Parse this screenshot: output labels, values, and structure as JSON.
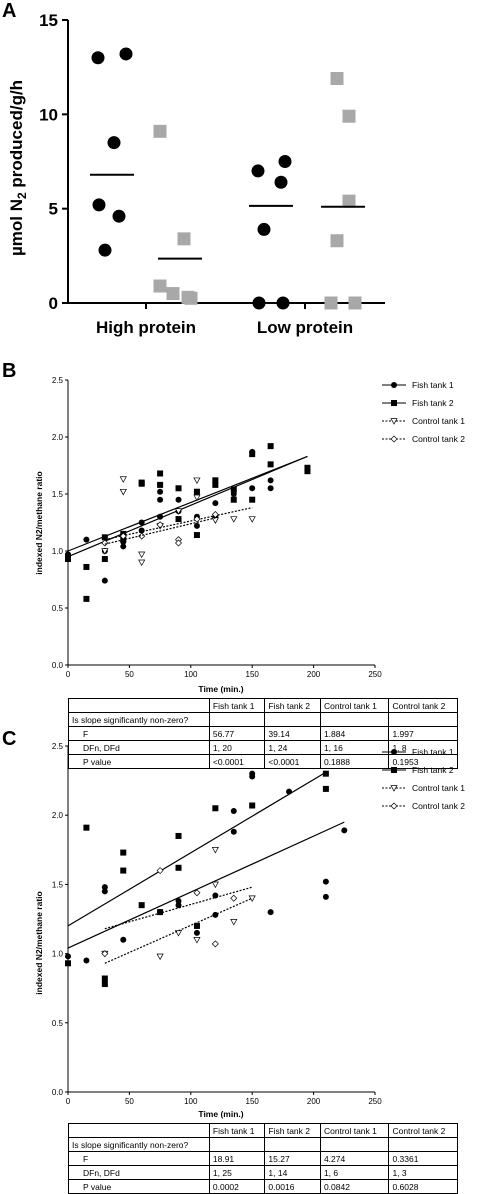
{
  "panel_a": {
    "letter": "A",
    "ylabel_pre": "µmol N",
    "ylabel_sub": "2",
    "ylabel_post": " produced/g/h",
    "yticks": [
      "0",
      "5",
      "10",
      "15"
    ]
  },
  "panel_b": {
    "letter": "B",
    "xlabel": "Time (min.)",
    "ylabel": "indexed N2/methane ratio",
    "xticks": [
      "0",
      "50",
      "100",
      "150",
      "200",
      "250"
    ],
    "yticks": [
      "0.0",
      "0.5",
      "1.0",
      "1.5",
      "2.0",
      "2.5"
    ],
    "legend": [
      "Fish tank 1",
      "Fish tank 2",
      "Control tank 1",
      "Control tank 2"
    ],
    "table": {
      "header": [
        "",
        "Fish tank 1",
        "Fish tank 2",
        "Control tank 1",
        "Control tank 2"
      ],
      "section": "Is slope significantly non-zero?",
      "rows": [
        [
          "F",
          "56.77",
          "39.14",
          "1.884",
          "1.997"
        ],
        [
          "DFn, DFd",
          "1, 20",
          "1, 24",
          "1, 16",
          "1, 8"
        ],
        [
          "P value",
          "<0.0001",
          "<0.0001",
          "0.1888",
          "0.1953"
        ]
      ]
    }
  },
  "panel_c": {
    "letter": "C",
    "xlabel": "Time (min.)",
    "ylabel": "indexed N2/methane ratio",
    "xticks": [
      "0",
      "50",
      "100",
      "150",
      "200",
      "250"
    ],
    "yticks": [
      "0.0",
      "0.5",
      "1.0",
      "1.5",
      "2.0",
      "2.5"
    ],
    "legend": [
      "Fish tank 1",
      "Fish tank 2",
      "Control tank 1",
      "Control tank 2"
    ],
    "table": {
      "header": [
        "",
        "Fish tank 1",
        "Fish tank 2",
        "Control tank 1",
        "Control tank 2"
      ],
      "section": "Is slope significantly non-zero?",
      "rows": [
        [
          "F",
          "18.91",
          "15.27",
          "4.274",
          "0.3361"
        ],
        [
          "DFn, DFd",
          "1, 25",
          "1, 14",
          "1, 6",
          "1, 3"
        ],
        [
          "P value",
          "0.0002",
          "0.0016",
          "0.0842",
          "0.6028"
        ]
      ]
    }
  },
  "chart_data": [
    {
      "type": "scatter",
      "panel": "A",
      "categories": [
        "High protein",
        "Low protein"
      ],
      "ylim": [
        0,
        15
      ],
      "colors": {
        "dark": "#000000",
        "light": "#a8a8a8"
      },
      "series": [
        {
          "group": "High protein",
          "marker": "circle",
          "color": "#000000",
          "values": [
            13.0,
            13.2,
            8.5,
            5.2,
            4.6,
            2.8
          ],
          "mean": 6.8
        },
        {
          "group": "High protein",
          "marker": "square",
          "color": "#a8a8a8",
          "values": [
            9.1,
            3.4,
            0.9,
            0.5,
            0.3,
            0.25
          ],
          "mean": 2.35
        },
        {
          "group": "Low protein",
          "marker": "circle",
          "color": "#000000",
          "values": [
            7.0,
            7.5,
            6.4,
            3.9,
            0.0,
            0.0
          ],
          "mean": 5.15
        },
        {
          "group": "Low protein",
          "marker": "square",
          "color": "#a8a8a8",
          "values": [
            11.9,
            9.9,
            5.4,
            3.3,
            0.0,
            0.0
          ],
          "mean": 5.1
        }
      ]
    },
    {
      "type": "scatter",
      "panel": "B",
      "xlabel": "Time (min.)",
      "ylabel": "indexed N2/methane ratio",
      "xlim": [
        0,
        250
      ],
      "ylim": [
        0,
        2.5
      ],
      "legend_position": "top-right",
      "series": [
        {
          "name": "Fish tank 1",
          "marker": "circle",
          "points": [
            [
              0,
              0.97
            ],
            [
              15,
              1.1
            ],
            [
              30,
              0.74
            ],
            [
              30,
              1.0
            ],
            [
              45,
              1.04
            ],
            [
              45,
              1.08
            ],
            [
              60,
              1.18
            ],
            [
              60,
              1.25
            ],
            [
              75,
              1.3
            ],
            [
              75,
              1.45
            ],
            [
              75,
              1.52
            ],
            [
              90,
              1.35
            ],
            [
              90,
              1.45
            ],
            [
              105,
              1.22
            ],
            [
              105,
              1.3
            ],
            [
              120,
              1.3
            ],
            [
              120,
              1.42
            ],
            [
              135,
              1.5
            ],
            [
              150,
              1.55
            ],
            [
              150,
              1.87
            ],
            [
              165,
              1.55
            ],
            [
              165,
              1.62
            ]
          ],
          "fit": [
            [
              0,
              1.0
            ],
            [
              195,
              1.83
            ]
          ]
        },
        {
          "name": "Fish tank 2",
          "marker": "square",
          "points": [
            [
              0,
              0.93
            ],
            [
              15,
              0.58
            ],
            [
              15,
              0.86
            ],
            [
              30,
              0.93
            ],
            [
              30,
              1.12
            ],
            [
              45,
              1.1
            ],
            [
              45,
              1.15
            ],
            [
              60,
              1.59
            ],
            [
              60,
              1.6
            ],
            [
              75,
              1.68
            ],
            [
              75,
              1.58
            ],
            [
              90,
              1.55
            ],
            [
              90,
              1.28
            ],
            [
              105,
              1.14
            ],
            [
              105,
              1.52
            ],
            [
              120,
              1.62
            ],
            [
              120,
              1.58
            ],
            [
              135,
              1.54
            ],
            [
              135,
              1.45
            ],
            [
              150,
              1.45
            ],
            [
              150,
              1.85
            ],
            [
              165,
              1.92
            ],
            [
              165,
              1.76
            ],
            [
              195,
              1.73
            ],
            [
              195,
              1.7
            ],
            [
              0,
              0.95
            ]
          ],
          "fit": [
            [
              0,
              0.95
            ],
            [
              195,
              1.83
            ]
          ]
        },
        {
          "name": "Control tank 1",
          "marker": "triangle-down",
          "points": [
            [
              30,
              1.0
            ],
            [
              45,
              1.52
            ],
            [
              45,
              1.63
            ],
            [
              60,
              0.9
            ],
            [
              60,
              0.97
            ],
            [
              75,
              1.22
            ],
            [
              90,
              1.35
            ],
            [
              105,
              1.47
            ],
            [
              105,
              1.62
            ],
            [
              120,
              1.27
            ],
            [
              135,
              1.28
            ],
            [
              150,
              1.28
            ]
          ],
          "fit": [
            [
              30,
              1.1
            ],
            [
              150,
              1.38
            ]
          ]
        },
        {
          "name": "Control tank 2",
          "marker": "diamond",
          "points": [
            [
              30,
              1.07
            ],
            [
              45,
              1.13
            ],
            [
              60,
              1.13
            ],
            [
              75,
              1.23
            ],
            [
              90,
              1.1
            ],
            [
              90,
              1.07
            ],
            [
              105,
              1.28
            ],
            [
              120,
              1.32
            ]
          ],
          "fit": [
            [
              30,
              1.06
            ],
            [
              120,
              1.29
            ]
          ]
        }
      ]
    },
    {
      "type": "scatter",
      "panel": "C",
      "xlabel": "Time (min.)",
      "ylabel": "indexed N2/methane ratio",
      "xlim": [
        0,
        250
      ],
      "ylim": [
        0,
        2.5
      ],
      "legend_position": "top-right",
      "series": [
        {
          "name": "Fish tank 1",
          "marker": "circle",
          "points": [
            [
              0,
              0.98
            ],
            [
              15,
              0.95
            ],
            [
              30,
              1.48
            ],
            [
              30,
              1.45
            ],
            [
              45,
              1.1
            ],
            [
              75,
              1.3
            ],
            [
              90,
              1.38
            ],
            [
              90,
              1.35
            ],
            [
              105,
              1.15
            ],
            [
              105,
              1.2
            ],
            [
              120,
              1.42
            ],
            [
              120,
              1.28
            ],
            [
              135,
              1.88
            ],
            [
              135,
              2.03
            ],
            [
              150,
              2.28
            ],
            [
              150,
              2.3
            ],
            [
              165,
              1.3
            ],
            [
              180,
              2.17
            ],
            [
              210,
              1.52
            ],
            [
              210,
              1.41
            ],
            [
              225,
              1.89
            ]
          ],
          "fit": [
            [
              0,
              1.04
            ],
            [
              225,
              1.95
            ]
          ]
        },
        {
          "name": "Fish tank 2",
          "marker": "square",
          "points": [
            [
              0,
              0.93
            ],
            [
              15,
              1.91
            ],
            [
              30,
              0.78
            ],
            [
              30,
              0.82
            ],
            [
              45,
              1.73
            ],
            [
              45,
              1.6
            ],
            [
              60,
              1.35
            ],
            [
              75,
              1.3
            ],
            [
              90,
              1.62
            ],
            [
              90,
              1.85
            ],
            [
              105,
              1.2
            ],
            [
              120,
              2.05
            ],
            [
              150,
              2.07
            ],
            [
              210,
              2.3
            ],
            [
              210,
              2.19
            ]
          ],
          "fit": [
            [
              0,
              1.2
            ],
            [
              210,
              2.31
            ]
          ]
        },
        {
          "name": "Control tank 1",
          "marker": "triangle-down",
          "points": [
            [
              30,
              1.0
            ],
            [
              75,
              0.98
            ],
            [
              90,
              1.15
            ],
            [
              105,
              1.1
            ],
            [
              120,
              1.5
            ],
            [
              120,
              1.75
            ],
            [
              135,
              1.23
            ],
            [
              150,
              1.4
            ]
          ],
          "fit": [
            [
              30,
              0.93
            ],
            [
              150,
              1.4
            ]
          ]
        },
        {
          "name": "Control tank 2",
          "marker": "diamond",
          "points": [
            [
              30,
              1.0
            ],
            [
              75,
              1.6
            ],
            [
              105,
              1.44
            ],
            [
              120,
              1.07
            ],
            [
              135,
              1.4
            ]
          ],
          "fit": [
            [
              30,
              1.18
            ],
            [
              150,
              1.48
            ]
          ]
        }
      ]
    }
  ]
}
